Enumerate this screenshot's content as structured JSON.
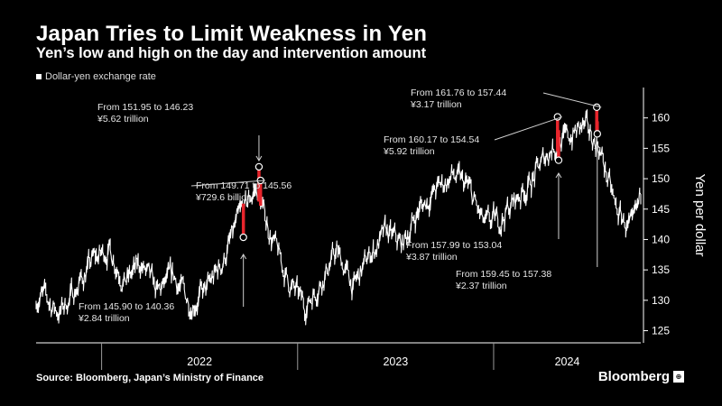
{
  "title": "Japan Tries to Limit Weakness in Yen",
  "subtitle": "Yen’s low and high on the day and intervention amount",
  "legend": {
    "label": "Dollar-yen exchange rate"
  },
  "source": "Source: Bloomberg, Japan’s Ministry of Finance",
  "brand": {
    "name": "Bloomberg",
    "mark": "⊕"
  },
  "colors": {
    "background": "#000000",
    "line": "#ffffff",
    "intervention": "#e8252c",
    "axis": "#ffffff",
    "annotation": "#e6e6e6"
  },
  "chart_data": {
    "type": "line",
    "title": "Japan Tries to Limit Weakness in Yen",
    "ylabel": "Yen per dollar",
    "ylim": [
      123,
      165
    ],
    "yticks": [
      125,
      130,
      135,
      140,
      145,
      150,
      155,
      160
    ],
    "y_axis_side": "right",
    "grid": false,
    "x_axis": {
      "type": "date",
      "range": [
        "2021-09",
        "2024-10"
      ],
      "year_labels": [
        "2022",
        "2023",
        "2024"
      ]
    },
    "series": [
      {
        "name": "Dollar-yen exchange rate",
        "x": [
          "2021-09",
          "2021-10",
          "2021-11",
          "2021-12",
          "2022-01",
          "2022-02",
          "2022-03",
          "2022-04",
          "2022-05",
          "2022-06",
          "2022-07",
          "2022-08",
          "2022-09",
          "2022-10",
          "2022-11",
          "2022-12",
          "2023-01",
          "2023-02",
          "2023-03",
          "2023-04",
          "2023-05",
          "2023-06",
          "2023-07",
          "2023-08",
          "2023-09",
          "2023-10",
          "2023-11",
          "2023-12",
          "2024-01",
          "2024-02",
          "2024-03",
          "2024-04",
          "2024-05",
          "2024-06",
          "2024-07",
          "2024-08",
          "2024-09",
          "2024-10"
        ],
        "values": [
          130.5,
          128.0,
          132.0,
          136.5,
          138.5,
          133.0,
          136.0,
          131.0,
          134.0,
          129.5,
          131.5,
          136.5,
          143.5,
          148.5,
          140.0,
          133.0,
          129.0,
          133.5,
          138.0,
          132.0,
          137.5,
          141.0,
          139.0,
          145.0,
          148.0,
          150.5,
          148.5,
          142.0,
          143.5,
          147.0,
          150.0,
          155.0,
          156.5,
          158.5,
          155.5,
          145.0,
          141.0,
          152.0
        ]
      }
    ],
    "interventions": [
      {
        "date": "2022-09-22",
        "label": "From 145.90 to 140.36",
        "amount": "¥2.84 trillion",
        "high": 145.9,
        "low": 140.36
      },
      {
        "date": "2022-10-21",
        "label": "From 151.95 to 146.23",
        "amount": "¥5.62 trillion",
        "high": 151.95,
        "low": 146.23
      },
      {
        "date": "2022-10-24",
        "label": "From 149.71 to 145.56",
        "amount": "¥729.6 billion",
        "high": 149.71,
        "low": 145.56
      },
      {
        "date": "2024-04-29",
        "label": "From 160.17 to 154.54",
        "amount": "¥5.92 trillion",
        "high": 160.17,
        "low": 154.54
      },
      {
        "date": "2024-05-01",
        "label": "From 157.99 to 153.04",
        "amount": "¥3.87 trillion",
        "high": 157.99,
        "low": 153.04
      },
      {
        "date": "2024-07-11",
        "label": "From 161.76 to 157.44",
        "amount": "¥3.17 trillion",
        "high": 161.76,
        "low": 157.44
      },
      {
        "date": "2024-07-12",
        "label": "From 159.45 to 157.38",
        "amount": "¥2.37 trillion",
        "high": 159.45,
        "low": 157.38
      }
    ]
  }
}
